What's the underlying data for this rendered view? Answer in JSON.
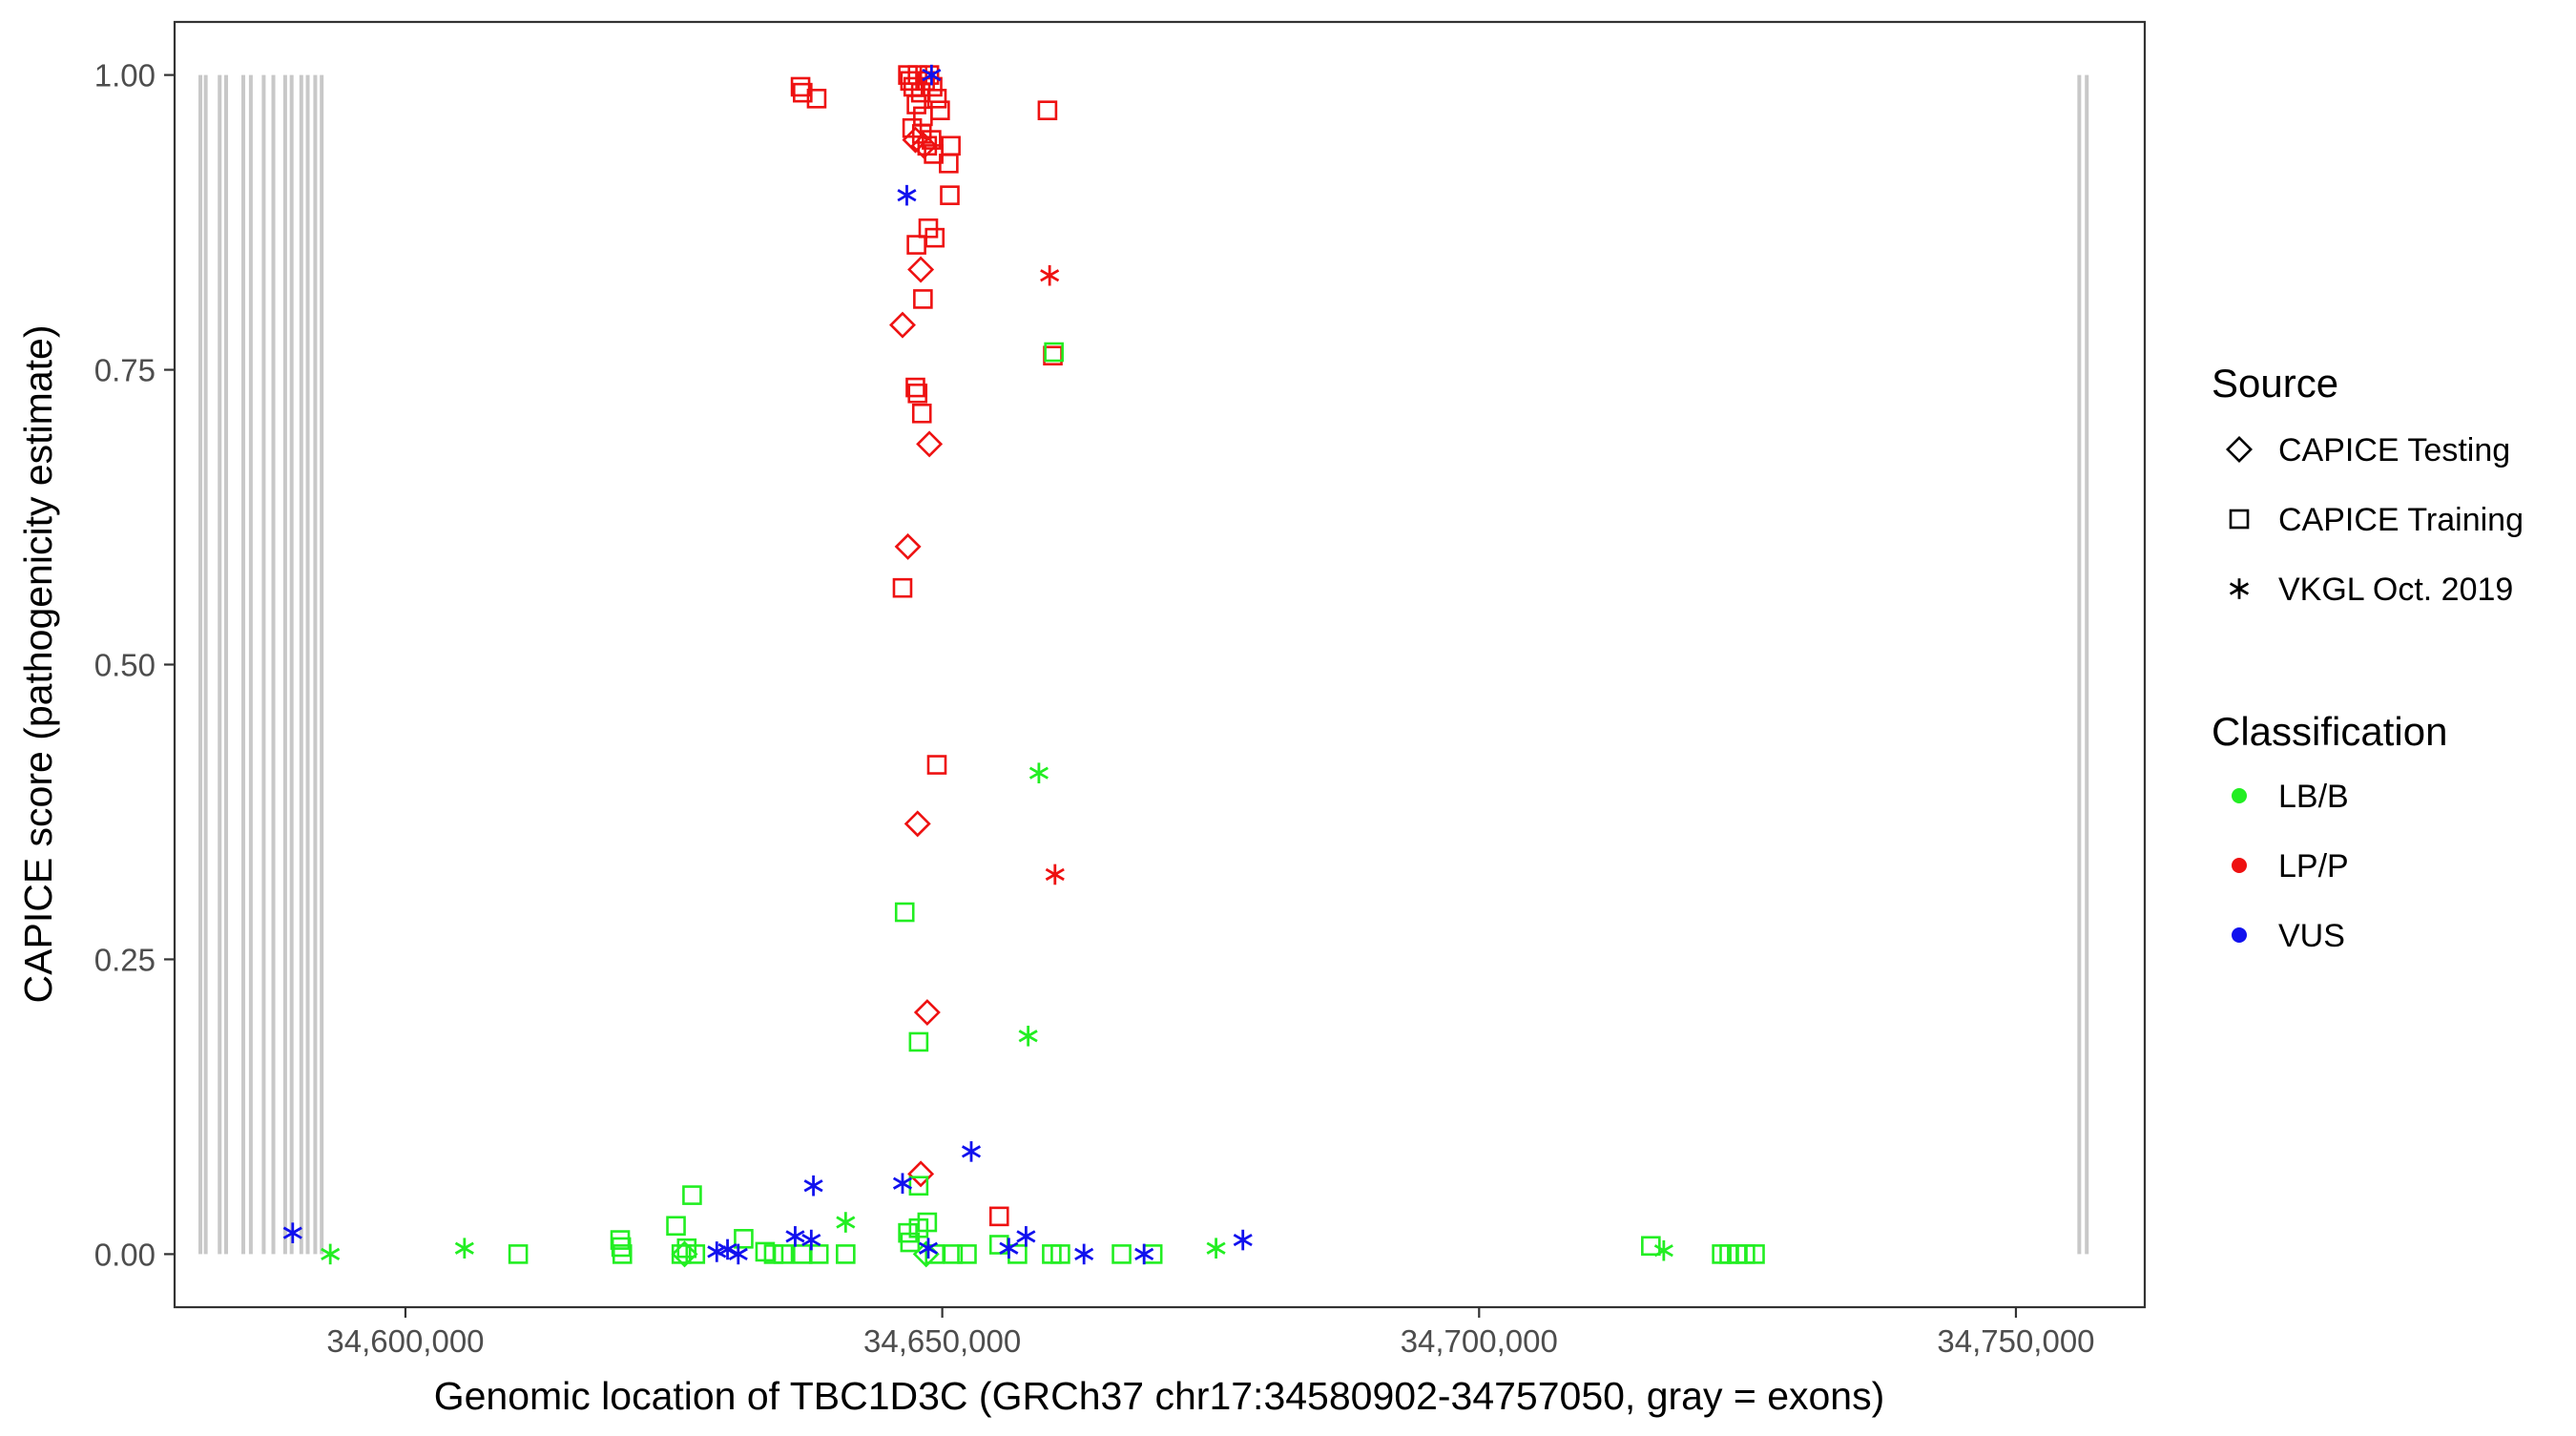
{
  "chart_data": {
    "type": "scatter",
    "xlabel": "Genomic location of TBC1D3C (GRCh37 chr17:34580902-34757050, gray = exons)",
    "ylabel": "CAPICE score (pathogenicity estimate)",
    "xlim": [
      34578500,
      34762000
    ],
    "ylim": [
      -0.045,
      1.045
    ],
    "x_ticks": [
      34600000,
      34650000,
      34700000,
      34750000
    ],
    "x_tick_labels": [
      "34,600,000",
      "34,650,000",
      "34,700,000",
      "34,750,000"
    ],
    "y_ticks": [
      0,
      0.25,
      0.5,
      0.75,
      1.0
    ],
    "y_tick_labels": [
      "0.00",
      "0.25",
      "0.50",
      "0.75",
      "1.00"
    ],
    "grid": false,
    "exons": [
      34580902,
      34581400,
      34582700,
      34583300,
      34584900,
      34585600,
      34586800,
      34587700,
      34588800,
      34589400,
      34590300,
      34590900,
      34591600,
      34592200,
      34755900,
      34756600
    ],
    "exon_color": "#c8c8c8",
    "legend": {
      "position": "right",
      "source": {
        "title": "Source",
        "entries": [
          {
            "label": "CAPICE Testing",
            "shape": "diamond"
          },
          {
            "label": "CAPICE Training",
            "shape": "square"
          },
          {
            "label": "VKGL Oct. 2019",
            "shape": "asterisk"
          }
        ]
      },
      "classification": {
        "title": "Classification",
        "entries": [
          {
            "label": "LB/B",
            "color": "#22ee22"
          },
          {
            "label": "LP/P",
            "color": "#ee1111"
          },
          {
            "label": "VUS",
            "color": "#1111ee"
          }
        ]
      }
    },
    "series": [
      {
        "classification": "LP/P",
        "color": "#ee1111",
        "points": [
          {
            "x": 34636800,
            "y": 0.99,
            "shape": "square"
          },
          {
            "x": 34637000,
            "y": 0.985,
            "shape": "square"
          },
          {
            "x": 34638300,
            "y": 0.98,
            "shape": "square"
          },
          {
            "x": 34646800,
            "y": 1.0,
            "shape": "square"
          },
          {
            "x": 34647000,
            "y": 0.995,
            "shape": "square"
          },
          {
            "x": 34647300,
            "y": 0.99,
            "shape": "square"
          },
          {
            "x": 34647700,
            "y": 1.0,
            "shape": "square"
          },
          {
            "x": 34648000,
            "y": 0.985,
            "shape": "square"
          },
          {
            "x": 34648400,
            "y": 0.995,
            "shape": "square"
          },
          {
            "x": 34648800,
            "y": 1.0,
            "shape": "square"
          },
          {
            "x": 34649100,
            "y": 0.99,
            "shape": "square"
          },
          {
            "x": 34649500,
            "y": 0.98,
            "shape": "square"
          },
          {
            "x": 34649800,
            "y": 0.97,
            "shape": "square"
          },
          {
            "x": 34647600,
            "y": 0.975,
            "shape": "square"
          },
          {
            "x": 34648200,
            "y": 0.965,
            "shape": "square"
          },
          {
            "x": 34647200,
            "y": 0.955,
            "shape": "square"
          },
          {
            "x": 34648100,
            "y": 0.95,
            "shape": "square"
          },
          {
            "x": 34649000,
            "y": 0.945,
            "shape": "square"
          },
          {
            "x": 34648600,
            "y": 0.94,
            "shape": "square"
          },
          {
            "x": 34650800,
            "y": 0.94,
            "shape": "square"
          },
          {
            "x": 34649200,
            "y": 0.933,
            "shape": "square"
          },
          {
            "x": 34650600,
            "y": 0.925,
            "shape": "square"
          },
          {
            "x": 34650700,
            "y": 0.898,
            "shape": "square"
          },
          {
            "x": 34648700,
            "y": 0.87,
            "shape": "square"
          },
          {
            "x": 34649300,
            "y": 0.862,
            "shape": "square"
          },
          {
            "x": 34647600,
            "y": 0.856,
            "shape": "square"
          },
          {
            "x": 34648200,
            "y": 0.81,
            "shape": "square"
          },
          {
            "x": 34647500,
            "y": 0.735,
            "shape": "square"
          },
          {
            "x": 34647700,
            "y": 0.73,
            "shape": "square"
          },
          {
            "x": 34648100,
            "y": 0.713,
            "shape": "square"
          },
          {
            "x": 34646300,
            "y": 0.565,
            "shape": "square"
          },
          {
            "x": 34649500,
            "y": 0.415,
            "shape": "square"
          },
          {
            "x": 34655300,
            "y": 0.032,
            "shape": "square"
          },
          {
            "x": 34659800,
            "y": 0.97,
            "shape": "square"
          },
          {
            "x": 34660300,
            "y": 0.762,
            "shape": "square"
          },
          {
            "x": 34647500,
            "y": 0.945,
            "shape": "diamond"
          },
          {
            "x": 34648300,
            "y": 0.94,
            "shape": "diamond"
          },
          {
            "x": 34648000,
            "y": 0.835,
            "shape": "diamond"
          },
          {
            "x": 34646300,
            "y": 0.788,
            "shape": "diamond"
          },
          {
            "x": 34648800,
            "y": 0.687,
            "shape": "diamond"
          },
          {
            "x": 34646800,
            "y": 0.6,
            "shape": "diamond"
          },
          {
            "x": 34647700,
            "y": 0.365,
            "shape": "diamond"
          },
          {
            "x": 34648600,
            "y": 0.205,
            "shape": "diamond"
          },
          {
            "x": 34648000,
            "y": 0.068,
            "shape": "diamond"
          },
          {
            "x": 34660000,
            "y": 0.83,
            "shape": "asterisk"
          },
          {
            "x": 34660500,
            "y": 0.322,
            "shape": "asterisk"
          }
        ]
      },
      {
        "classification": "LB/B",
        "color": "#22ee22",
        "points": [
          {
            "x": 34593000,
            "y": 0.0,
            "shape": "asterisk"
          },
          {
            "x": 34605500,
            "y": 0.005,
            "shape": "asterisk"
          },
          {
            "x": 34641000,
            "y": 0.027,
            "shape": "asterisk"
          },
          {
            "x": 34658000,
            "y": 0.185,
            "shape": "asterisk"
          },
          {
            "x": 34659000,
            "y": 0.408,
            "shape": "asterisk"
          },
          {
            "x": 34675500,
            "y": 0.005,
            "shape": "asterisk"
          },
          {
            "x": 34717200,
            "y": 0.003,
            "shape": "asterisk"
          },
          {
            "x": 34610500,
            "y": 0.0,
            "shape": "square"
          },
          {
            "x": 34620000,
            "y": 0.012,
            "shape": "square"
          },
          {
            "x": 34620100,
            "y": 0.006,
            "shape": "square"
          },
          {
            "x": 34620200,
            "y": 0.0,
            "shape": "square"
          },
          {
            "x": 34625200,
            "y": 0.024,
            "shape": "square"
          },
          {
            "x": 34625700,
            "y": 0.0,
            "shape": "square"
          },
          {
            "x": 34626200,
            "y": 0.005,
            "shape": "square"
          },
          {
            "x": 34626700,
            "y": 0.05,
            "shape": "square"
          },
          {
            "x": 34627000,
            "y": 0.0,
            "shape": "square"
          },
          {
            "x": 34631500,
            "y": 0.013,
            "shape": "square"
          },
          {
            "x": 34633500,
            "y": 0.002,
            "shape": "square"
          },
          {
            "x": 34634300,
            "y": 0.0,
            "shape": "square"
          },
          {
            "x": 34635200,
            "y": 0.0,
            "shape": "square"
          },
          {
            "x": 34637000,
            "y": 0.0,
            "shape": "square"
          },
          {
            "x": 34638500,
            "y": 0.0,
            "shape": "square"
          },
          {
            "x": 34641000,
            "y": 0.0,
            "shape": "square"
          },
          {
            "x": 34646500,
            "y": 0.29,
            "shape": "square"
          },
          {
            "x": 34647800,
            "y": 0.18,
            "shape": "square"
          },
          {
            "x": 34647800,
            "y": 0.058,
            "shape": "square"
          },
          {
            "x": 34646800,
            "y": 0.018,
            "shape": "square"
          },
          {
            "x": 34647800,
            "y": 0.022,
            "shape": "square"
          },
          {
            "x": 34648600,
            "y": 0.027,
            "shape": "square"
          },
          {
            "x": 34647000,
            "y": 0.01,
            "shape": "square"
          },
          {
            "x": 34649300,
            "y": 0.0,
            "shape": "square"
          },
          {
            "x": 34651000,
            "y": 0.0,
            "shape": "square"
          },
          {
            "x": 34652300,
            "y": 0.0,
            "shape": "square"
          },
          {
            "x": 34655300,
            "y": 0.008,
            "shape": "square"
          },
          {
            "x": 34657000,
            "y": 0.0,
            "shape": "square"
          },
          {
            "x": 34660200,
            "y": 0.0,
            "shape": "square"
          },
          {
            "x": 34661000,
            "y": 0.0,
            "shape": "square"
          },
          {
            "x": 34666700,
            "y": 0.0,
            "shape": "square"
          },
          {
            "x": 34669600,
            "y": 0.0,
            "shape": "square"
          },
          {
            "x": 34660400,
            "y": 0.765,
            "shape": "square"
          },
          {
            "x": 34716000,
            "y": 0.007,
            "shape": "square"
          },
          {
            "x": 34722600,
            "y": 0.0,
            "shape": "square"
          },
          {
            "x": 34723300,
            "y": 0.0,
            "shape": "square"
          },
          {
            "x": 34724000,
            "y": 0.0,
            "shape": "square"
          },
          {
            "x": 34724800,
            "y": 0.0,
            "shape": "square"
          },
          {
            "x": 34725700,
            "y": 0.0,
            "shape": "square"
          },
          {
            "x": 34626000,
            "y": 0.0,
            "shape": "diamond"
          },
          {
            "x": 34648500,
            "y": 0.0,
            "shape": "diamond"
          }
        ]
      },
      {
        "classification": "VUS",
        "color": "#1111ee",
        "points": [
          {
            "x": 34589500,
            "y": 0.018,
            "shape": "asterisk"
          },
          {
            "x": 34629000,
            "y": 0.002,
            "shape": "asterisk"
          },
          {
            "x": 34630000,
            "y": 0.004,
            "shape": "asterisk"
          },
          {
            "x": 34631000,
            "y": 0.0,
            "shape": "asterisk"
          },
          {
            "x": 34636300,
            "y": 0.015,
            "shape": "asterisk"
          },
          {
            "x": 34637800,
            "y": 0.012,
            "shape": "asterisk"
          },
          {
            "x": 34638000,
            "y": 0.058,
            "shape": "asterisk"
          },
          {
            "x": 34646300,
            "y": 0.06,
            "shape": "asterisk"
          },
          {
            "x": 34646700,
            "y": 0.898,
            "shape": "asterisk"
          },
          {
            "x": 34649000,
            "y": 1.0,
            "shape": "asterisk"
          },
          {
            "x": 34648700,
            "y": 0.005,
            "shape": "asterisk"
          },
          {
            "x": 34652700,
            "y": 0.087,
            "shape": "asterisk"
          },
          {
            "x": 34656200,
            "y": 0.005,
            "shape": "asterisk"
          },
          {
            "x": 34657800,
            "y": 0.015,
            "shape": "asterisk"
          },
          {
            "x": 34663200,
            "y": 0.0,
            "shape": "asterisk"
          },
          {
            "x": 34668800,
            "y": 0.0,
            "shape": "asterisk"
          },
          {
            "x": 34678000,
            "y": 0.012,
            "shape": "asterisk"
          }
        ]
      }
    ]
  }
}
